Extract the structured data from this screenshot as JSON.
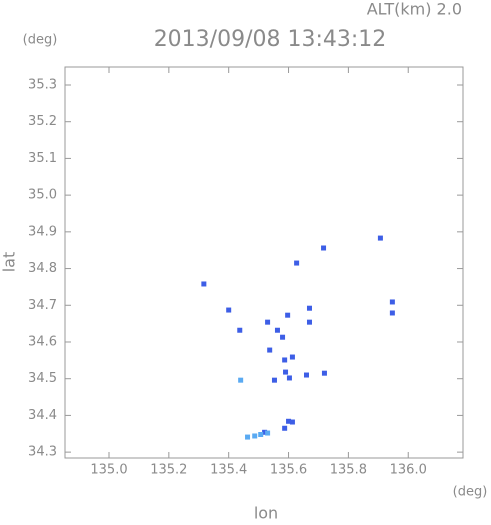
{
  "chart_data": {
    "type": "scatter",
    "title": "2013/09/08 13:43:12",
    "subtitle": "ALT(km) 2.0",
    "x_label": "lon",
    "y_label": "lat",
    "x_unit": "(deg)",
    "y_unit": "(deg)",
    "xlim": [
      134.853,
      136.183
    ],
    "ylim": [
      34.284,
      35.349
    ],
    "xticks": [
      {
        "value": 135,
        "label": "135.0"
      },
      135.2,
      135.4,
      135.6,
      135.8,
      {
        "value": 136,
        "label": "136.0"
      }
    ],
    "yticks": [
      34.3,
      34.4,
      34.5,
      34.6,
      34.7,
      34.8,
      34.9,
      {
        "value": 35,
        "label": "35.0"
      },
      35.1,
      35.2,
      35.3
    ],
    "series": [
      {
        "color": "#3d5ee6",
        "x": [
          135.317,
          135.4,
          135.437,
          135.53,
          135.537,
          135.553,
          135.58,
          135.597,
          135.587,
          135.613,
          135.59,
          135.603,
          135.627,
          135.67,
          135.67,
          135.66,
          135.72,
          135.717,
          135.907,
          135.947,
          135.947,
          135.613,
          135.6,
          135.587,
          135.563,
          135.52
        ],
        "values": [
          34.758,
          34.687,
          34.632,
          34.654,
          34.578,
          34.496,
          34.613,
          34.673,
          34.551,
          34.559,
          34.518,
          34.502,
          34.815,
          34.692,
          34.654,
          34.51,
          34.515,
          34.856,
          34.883,
          34.709,
          34.679,
          34.382,
          34.384,
          34.365,
          34.632,
          34.354
        ]
      },
      {
        "color": "#5aaaf2",
        "x": [
          135.44,
          135.463,
          135.487,
          135.507,
          135.53
        ],
        "values": [
          34.496,
          34.341,
          34.344,
          34.348,
          34.352
        ]
      }
    ]
  }
}
